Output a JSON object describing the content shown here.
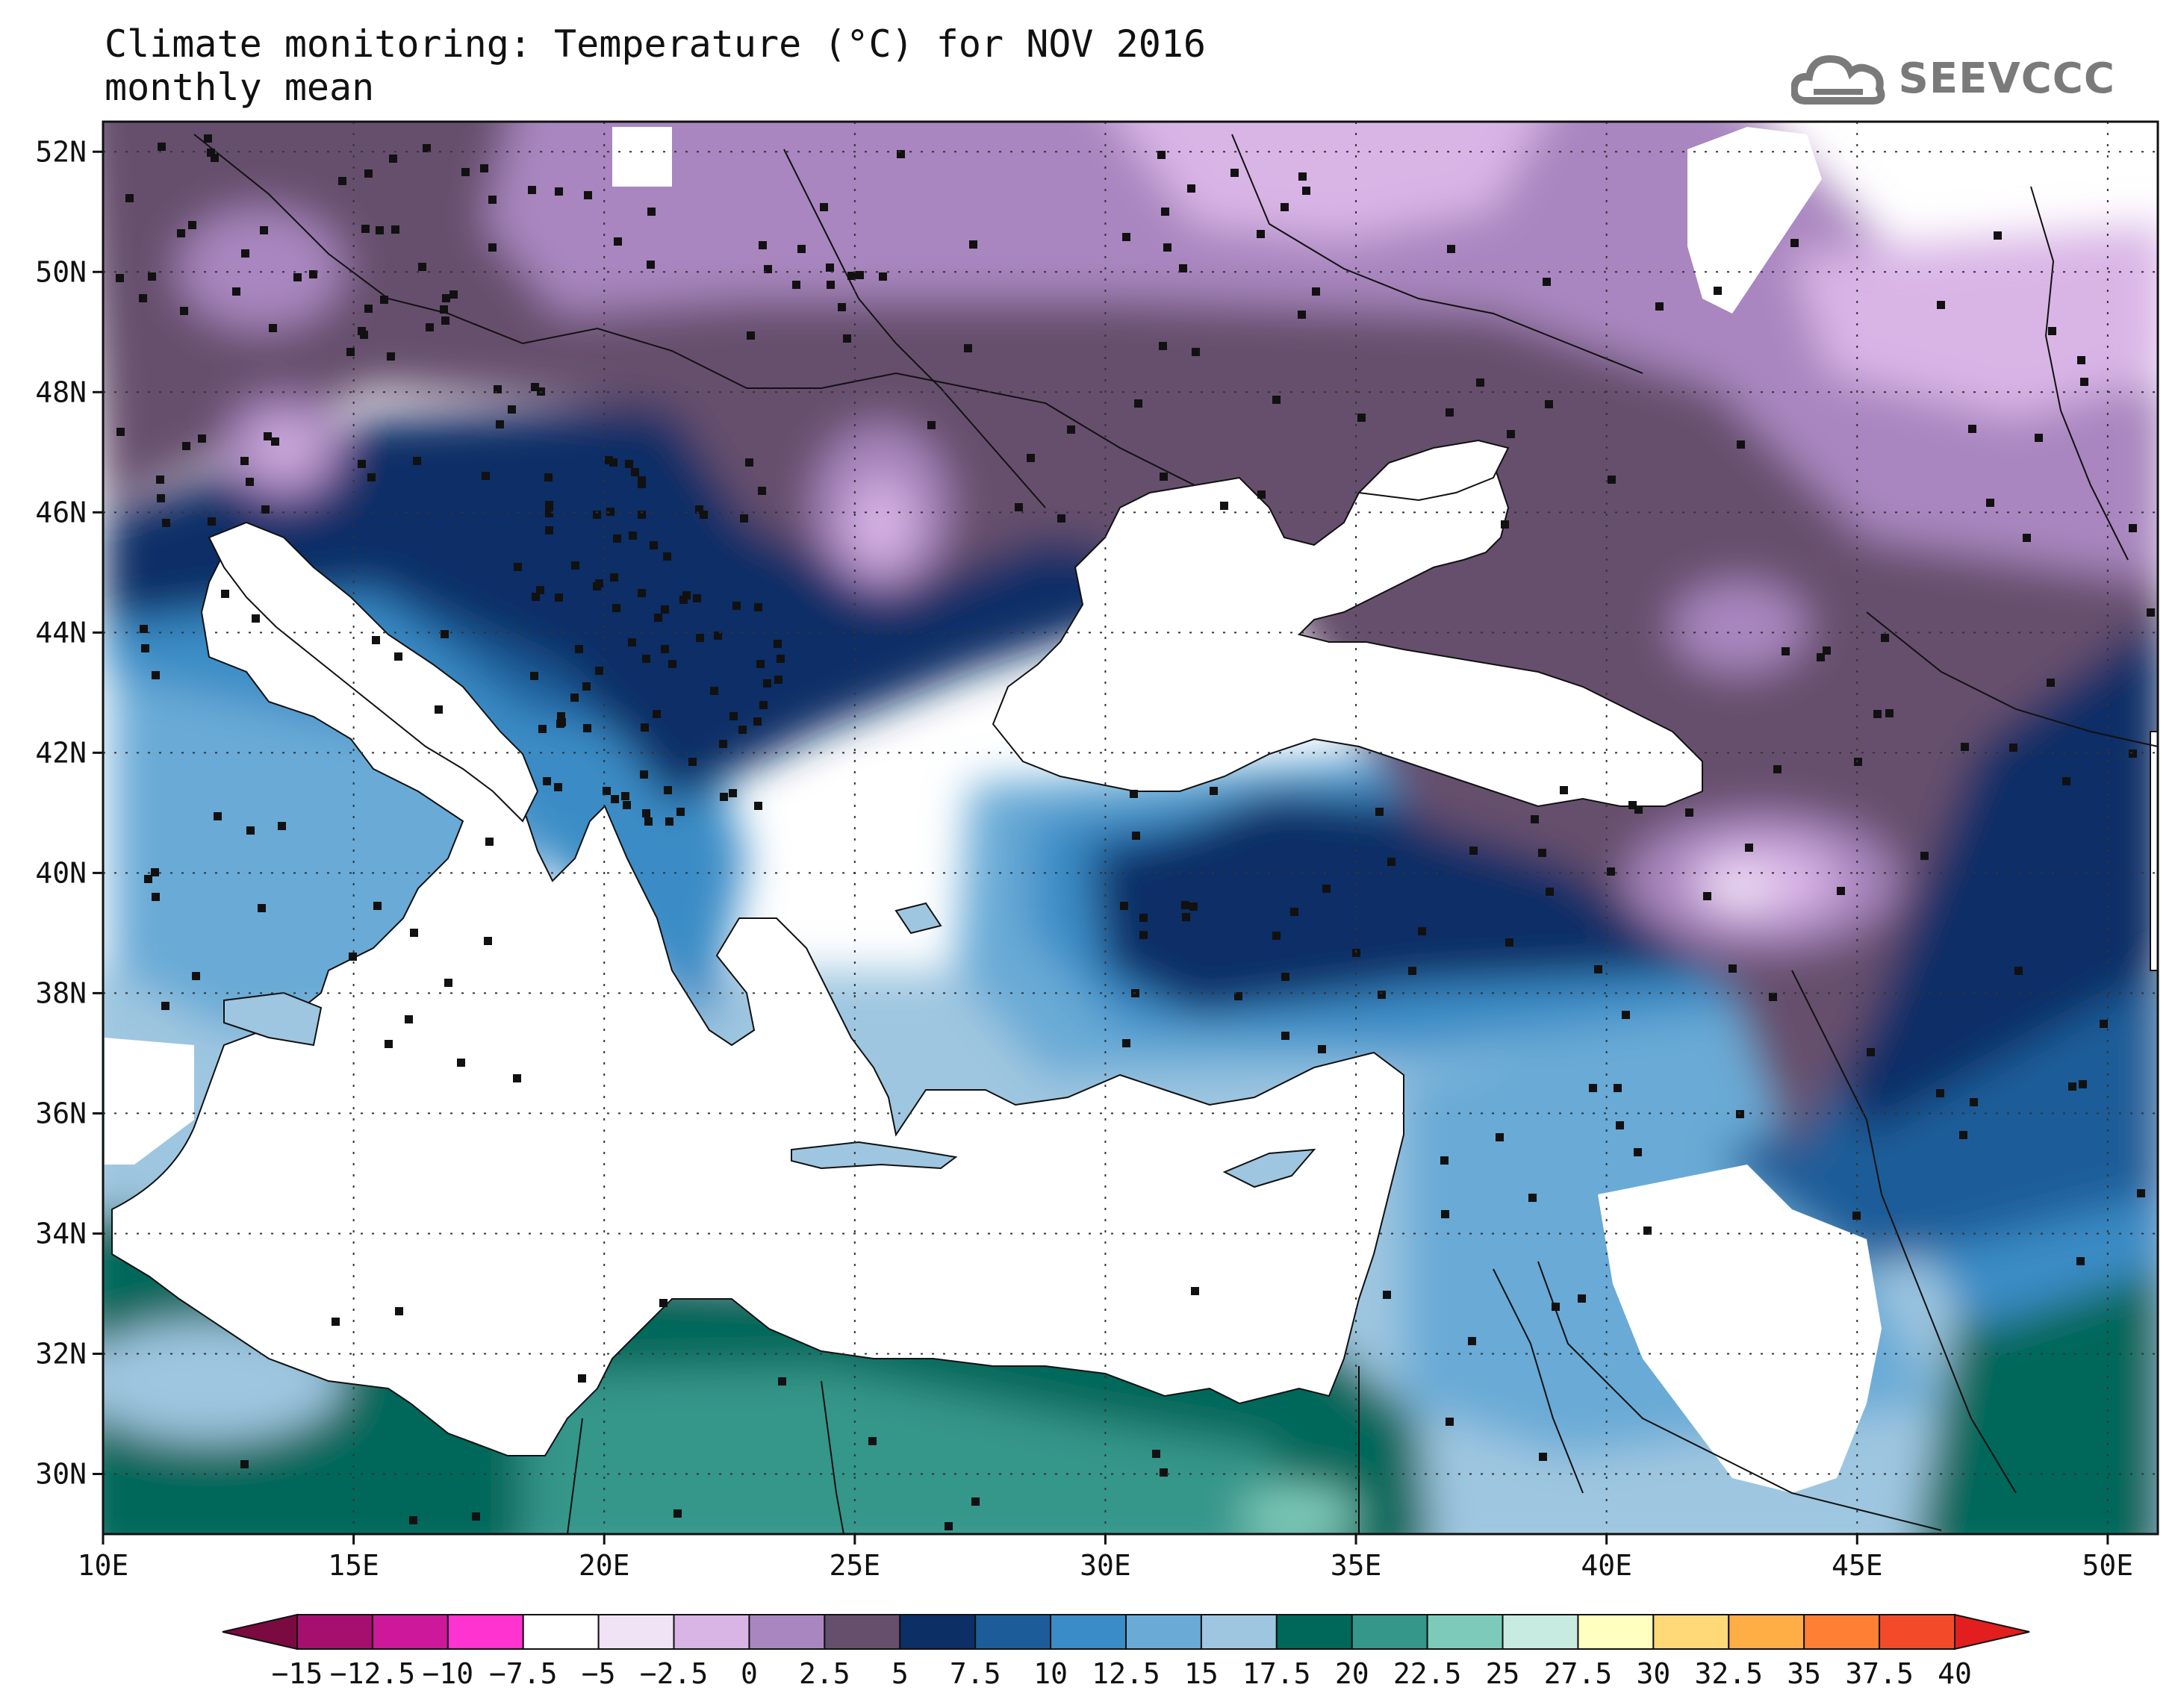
{
  "title": {
    "line1": "Climate monitoring: Temperature (°C) for NOV 2016",
    "line2": "monthly mean"
  },
  "logo": {
    "text": "SEEVCCC",
    "icon": "cloud-logo-icon"
  },
  "map": {
    "lon_range": [
      10,
      51
    ],
    "lat_range": [
      29,
      52.5
    ],
    "lon_ticks": [
      10,
      15,
      20,
      25,
      30,
      35,
      40,
      45,
      50
    ],
    "lon_tick_labels": [
      "10E",
      "15E",
      "20E",
      "25E",
      "30E",
      "35E",
      "40E",
      "45E",
      "50E"
    ],
    "lat_ticks": [
      30,
      32,
      34,
      36,
      38,
      40,
      42,
      44,
      46,
      48,
      50,
      52
    ],
    "lat_tick_labels": [
      "30N",
      "32N",
      "34N",
      "36N",
      "38N",
      "40N",
      "42N",
      "44N",
      "46N",
      "48N",
      "50N",
      "52N"
    ],
    "grid": "dotted",
    "field": "Temperature monthly mean (°C)",
    "land_mask_color": "#ffffff"
  },
  "colorbar": {
    "labels": [
      "-15",
      "-12.5",
      "-10",
      "-7.5",
      "-5",
      "-2.5",
      "0",
      "2.5",
      "5",
      "7.5",
      "10",
      "12.5",
      "15",
      "17.5",
      "20",
      "22.5",
      "25",
      "27.5",
      "30",
      "32.5",
      "35",
      "37.5",
      "40"
    ],
    "colors": [
      "#7a0a40",
      "#a5106f",
      "#cc1899",
      "#ff33d0",
      "#ffffff",
      "#f0e3f6",
      "#d9b5e6",
      "#a986bf",
      "#664f6d",
      "#0c2f66",
      "#1c5d99",
      "#3a8cc6",
      "#69aad6",
      "#9ec6e0",
      "#00685a",
      "#35968a",
      "#7ecaba",
      "#c7ebe1",
      "#ffffc0",
      "#ffd978",
      "#ffad45",
      "#ff8034",
      "#f34b2a",
      "#e21e1e"
    ]
  }
}
